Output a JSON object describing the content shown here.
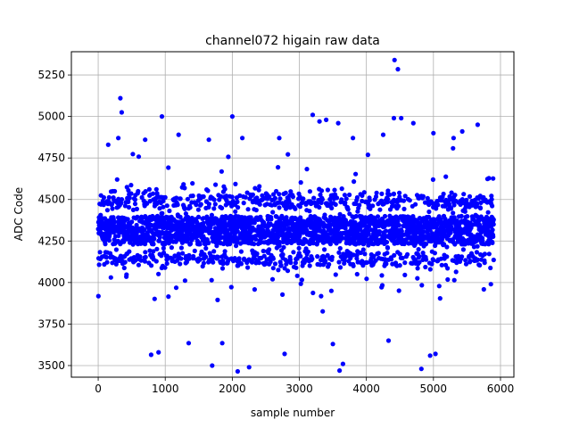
{
  "chart_data": {
    "type": "scatter",
    "title": "channel072 higain raw data",
    "xlabel": "sample number",
    "ylabel": "ADC Code",
    "xlim": [
      -400,
      6200
    ],
    "ylim": [
      3430,
      5390
    ],
    "x_ticks": [
      0,
      1000,
      2000,
      3000,
      4000,
      5000,
      6000
    ],
    "y_ticks": [
      3500,
      3750,
      4000,
      4250,
      4500,
      4750,
      5000,
      5250
    ],
    "grid": true,
    "marker_color": "#0000ff",
    "n_samples": 5900,
    "series": [
      {
        "core_band": [
          4230,
          4400
        ],
        "inner_bands": [
          4140,
          4490
        ],
        "outlier_points": [
          {
            "x": 330,
            "y": 5110
          },
          {
            "x": 350,
            "y": 5025
          },
          {
            "x": 950,
            "y": 5000
          },
          {
            "x": 2000,
            "y": 5000
          },
          {
            "x": 3200,
            "y": 5010
          },
          {
            "x": 3300,
            "y": 4970
          },
          {
            "x": 3400,
            "y": 4980
          },
          {
            "x": 3580,
            "y": 4960
          },
          {
            "x": 4420,
            "y": 5340
          },
          {
            "x": 4470,
            "y": 5285
          },
          {
            "x": 4410,
            "y": 4990
          },
          {
            "x": 4520,
            "y": 4990
          },
          {
            "x": 4700,
            "y": 4960
          },
          {
            "x": 5000,
            "y": 4900
          },
          {
            "x": 5430,
            "y": 4910
          },
          {
            "x": 5660,
            "y": 4950
          },
          {
            "x": 150,
            "y": 4830
          },
          {
            "x": 300,
            "y": 4870
          },
          {
            "x": 700,
            "y": 4860
          },
          {
            "x": 1200,
            "y": 4890
          },
          {
            "x": 1650,
            "y": 4860
          },
          {
            "x": 2150,
            "y": 4870
          },
          {
            "x": 2700,
            "y": 4870
          },
          {
            "x": 3800,
            "y": 4870
          },
          {
            "x": 4250,
            "y": 4890
          },
          {
            "x": 5300,
            "y": 4870
          },
          {
            "x": 1700,
            "y": 3500
          },
          {
            "x": 2080,
            "y": 3465
          },
          {
            "x": 2250,
            "y": 3490
          },
          {
            "x": 3600,
            "y": 3470
          },
          {
            "x": 3650,
            "y": 3510
          },
          {
            "x": 4820,
            "y": 3480
          },
          {
            "x": 4950,
            "y": 3560
          },
          {
            "x": 5030,
            "y": 3570
          },
          {
            "x": 790,
            "y": 3565
          },
          {
            "x": 900,
            "y": 3580
          },
          {
            "x": 2780,
            "y": 3570
          },
          {
            "x": 3500,
            "y": 3630
          },
          {
            "x": 1350,
            "y": 3635
          },
          {
            "x": 1850,
            "y": 3635
          },
          {
            "x": 4330,
            "y": 3650
          }
        ]
      }
    ]
  }
}
